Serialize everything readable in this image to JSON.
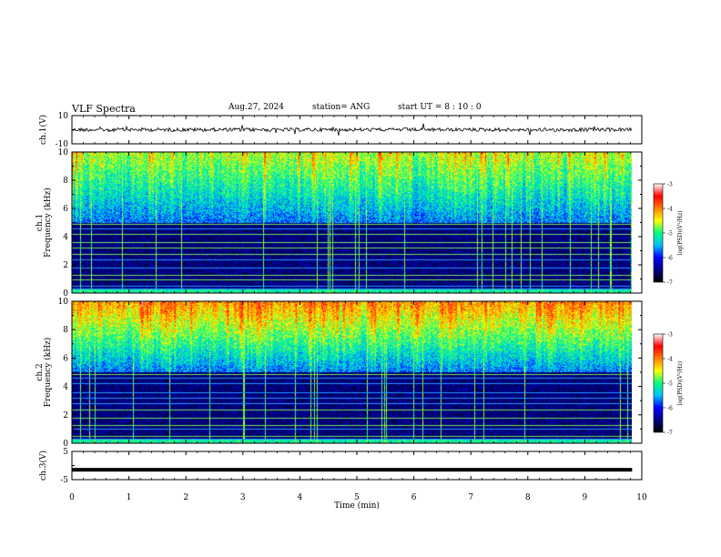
{
  "header": {
    "title": "VLF Spectra",
    "date": "Aug.27, 2024",
    "station": "station= ANG",
    "start_ut": "start  UT =   8  : 10 : 0"
  },
  "chart_data": [
    {
      "type": "line",
      "panel": "ch1-waveform",
      "ylabel": "ch.1(V)",
      "ylim": [
        -10,
        10
      ],
      "yticks": [
        "10",
        "-10"
      ],
      "xlim": [
        0,
        10
      ],
      "series_level": 0,
      "color": "#000000"
    },
    {
      "type": "heatmap",
      "panel": "ch1-spectrogram",
      "ylabel": "ch.1\nFrequency (kHz)",
      "ylabel_lines": [
        "ch.1",
        "Frequency (kHz)"
      ],
      "ylim": [
        0,
        10
      ],
      "yticks": [
        "0",
        "2",
        "4",
        "6",
        "8",
        "10"
      ],
      "xlim": [
        0,
        10
      ],
      "data_end_min": 9.83,
      "colorbar": {
        "label": "log(PSD)(V²/Hz)",
        "range": [
          -7,
          -3
        ],
        "ticks": [
          "-3",
          "-4",
          "-5",
          "-6",
          "-7"
        ],
        "colors": [
          "#000000",
          "#000080",
          "#0000ff",
          "#00c0ff",
          "#00ff80",
          "#ffff00",
          "#ff8000",
          "#ff0000",
          "#ffffff"
        ]
      }
    },
    {
      "type": "heatmap",
      "panel": "ch2-spectrogram",
      "ylabel": "ch.2\nFrequency (kHz)",
      "ylabel_lines": [
        "ch.2",
        "Frequency (kHz)"
      ],
      "ylim": [
        0,
        10
      ],
      "yticks": [
        "0",
        "2",
        "4",
        "6",
        "8",
        "10"
      ],
      "xlim": [
        0,
        10
      ],
      "data_end_min": 9.83,
      "colorbar": {
        "label": "log(PSD)(V²/Hz)",
        "range": [
          -7,
          -3
        ],
        "ticks": [
          "-3",
          "-4",
          "-5",
          "-6",
          "-7"
        ],
        "colors": [
          "#000000",
          "#000080",
          "#0000ff",
          "#00c0ff",
          "#00ff80",
          "#ffff00",
          "#ff8000",
          "#ff0000",
          "#ffffff"
        ]
      }
    },
    {
      "type": "line",
      "panel": "ch3-waveform",
      "ylabel": "ch.3(V)",
      "ylim": [
        -5,
        5
      ],
      "yticks": [
        "5",
        "-5"
      ],
      "xlim": [
        0,
        10
      ],
      "series_level": -1.5,
      "color": "#000000"
    }
  ],
  "x_axis": {
    "label": "Time  (min)",
    "ticks": [
      "0",
      "1",
      "2",
      "3",
      "4",
      "5",
      "6",
      "7",
      "8",
      "9",
      "10"
    ]
  }
}
